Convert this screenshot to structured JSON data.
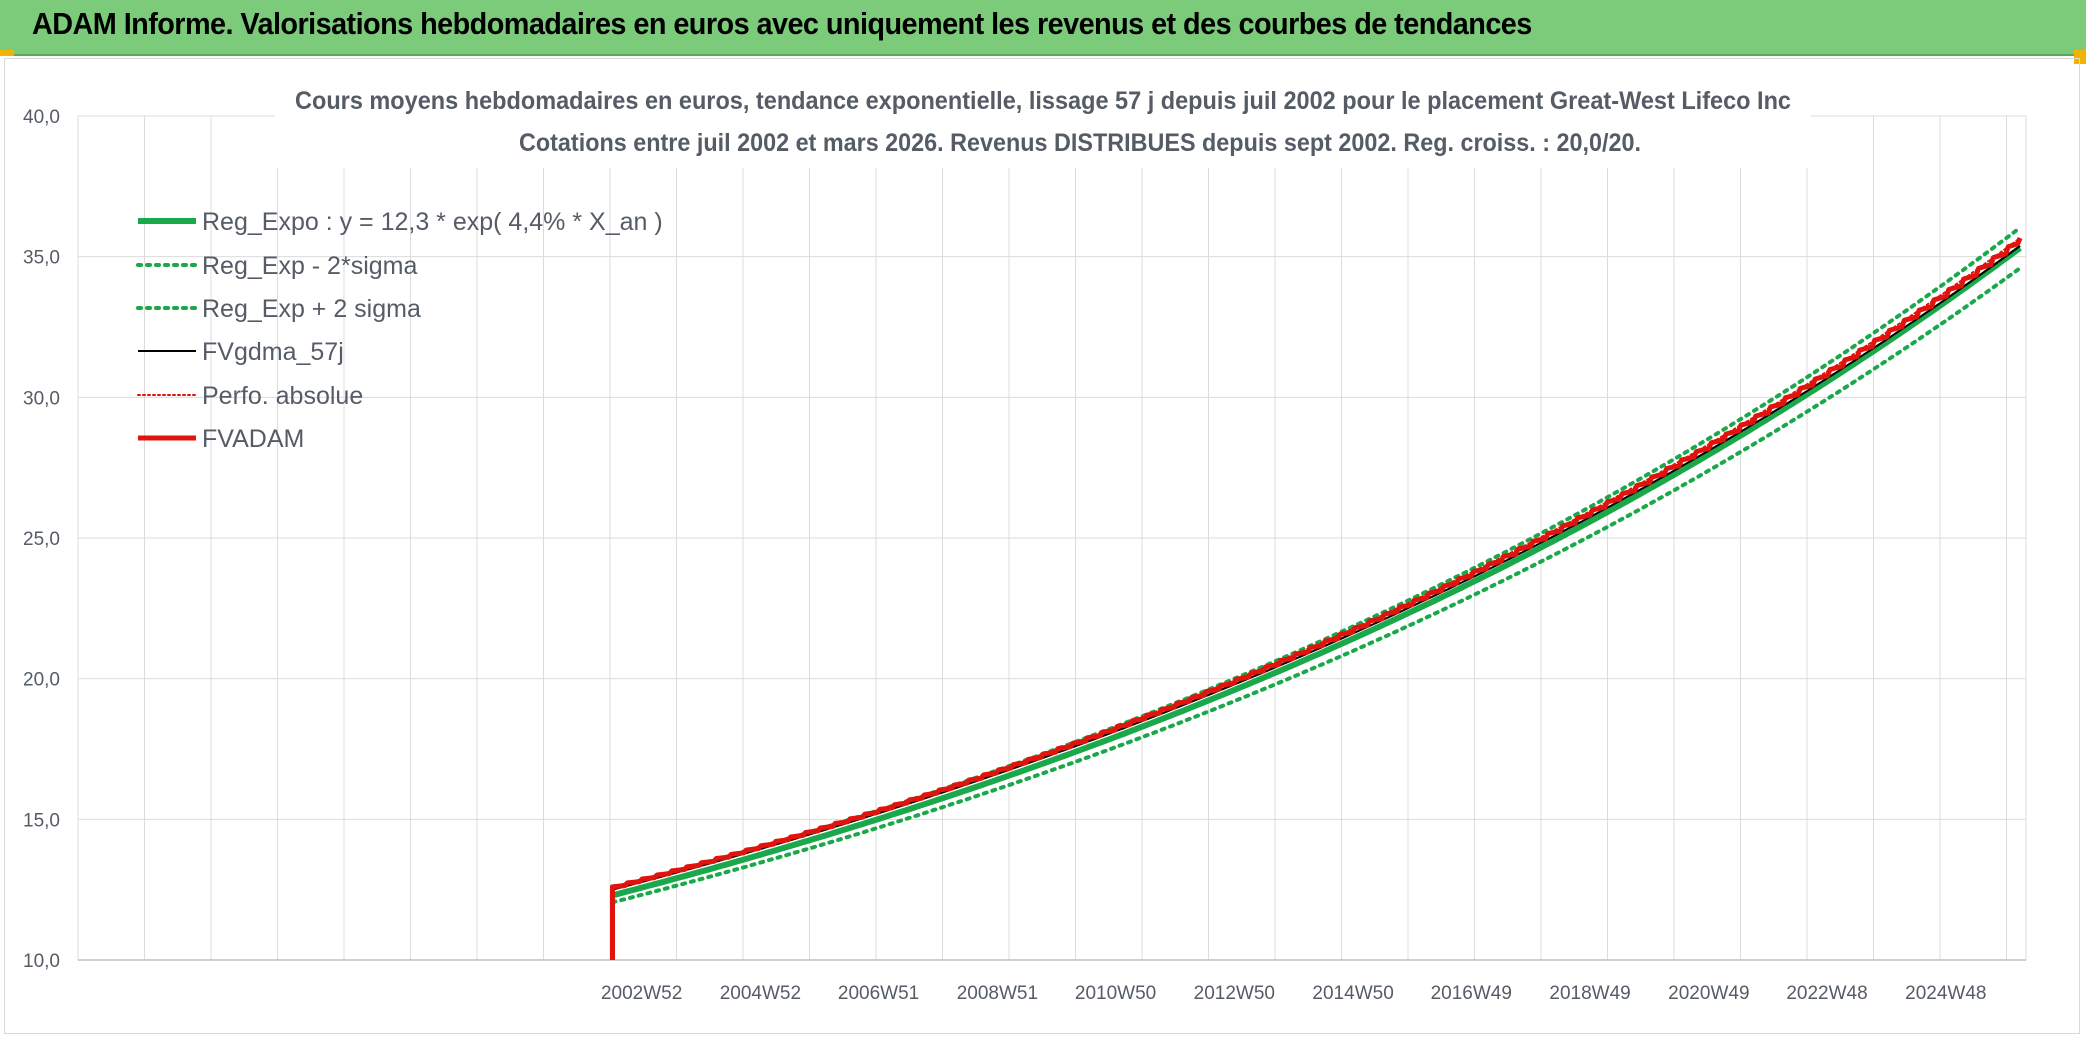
{
  "header": {
    "title": "ADAM Informe. Valorisations hebdomadaires en euros avec uniquement les revenus et des courbes de tendances"
  },
  "colors": {
    "header_bg": "#7ccb7a",
    "reg_expo": "#1aa84b",
    "fvgdma": "#000000",
    "fvadam": "#e0140c",
    "perfo": "#e0140c",
    "grid": "#dcdcdc",
    "text": "#555c66"
  },
  "chart_data": {
    "type": "line",
    "title_lines": [
      "Cours moyens hebdomadaires en euros, tendance exponentielle, lissage 57 j depuis juil 2002 pour le placement Great-West Lifeco Inc",
      "Cotations entre juil 2002 et mars 2026. Revenus DISTRIBUES depuis sept 2002. Reg. croiss. : 20,0/20."
    ],
    "ylim": [
      10,
      40
    ],
    "yticks": [
      "10,0",
      "15,0",
      "20,0",
      "25,0",
      "30,0",
      "35,0",
      "40,0"
    ],
    "xlim": [
      1993.5,
      2026.3
    ],
    "xticks": [
      {
        "label": "2002W52",
        "x": 2002.99
      },
      {
        "label": "2004W52",
        "x": 2004.99
      },
      {
        "label": "2006W51",
        "x": 2006.98
      },
      {
        "label": "2008W51",
        "x": 2008.98
      },
      {
        "label": "2010W50",
        "x": 2010.97
      },
      {
        "label": "2012W50",
        "x": 2012.97
      },
      {
        "label": "2014W50",
        "x": 2014.97
      },
      {
        "label": "2016W49",
        "x": 2016.96
      },
      {
        "label": "2018W49",
        "x": 2018.96
      },
      {
        "label": "2020W49",
        "x": 2020.96
      },
      {
        "label": "2022W48",
        "x": 2022.95
      },
      {
        "label": "2024W48",
        "x": 2024.95
      }
    ],
    "grid": true,
    "legend_position": "top-left",
    "x_start": 2002.5,
    "x_end": 2026.2,
    "series": [
      {
        "name": "Reg_Expo : y = 12,3 * exp( 4,4% *  X_an )",
        "style": "solid-thick",
        "color": "#1aa84b",
        "a": 12.3,
        "rate": 0.0445
      },
      {
        "name": "Reg_Exp - 2*sigma",
        "style": "dotted",
        "color": "#1aa84b",
        "a": 12.05,
        "rate": 0.0445
      },
      {
        "name": "Reg_Exp + 2 sigma",
        "style": "dotted",
        "color": "#1aa84b",
        "a": 12.55,
        "rate": 0.0445
      },
      {
        "name": "FVgdma_57j",
        "style": "solid-thin",
        "color": "#000000",
        "a": 12.5,
        "rate": 0.0439
      },
      {
        "name": "Perfo. absolue",
        "style": "dotted-thin",
        "color": "#e0140c",
        "a": 12.6,
        "rate": 0.0439
      },
      {
        "name": "FVADAM",
        "style": "stepped-thick",
        "color": "#e0140c",
        "a": 12.6,
        "rate": 0.0439,
        "step_years": 0.25,
        "start_drop_to": 10
      }
    ]
  }
}
